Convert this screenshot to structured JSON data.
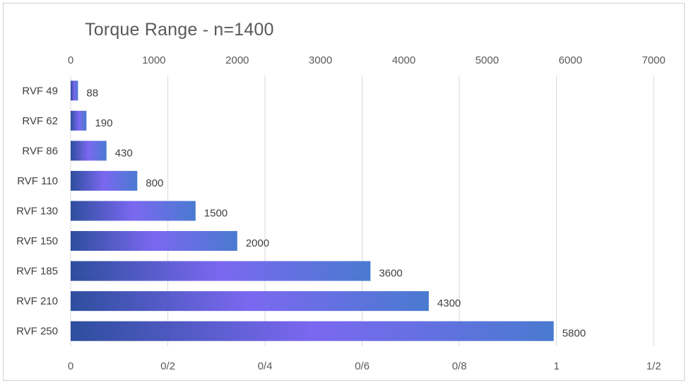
{
  "chart_data": {
    "type": "bar",
    "orientation": "horizontal",
    "title": "Torque Range - n=1400",
    "categories": [
      "RVF 49",
      "RVF 62",
      "RVF 86",
      "RVF 110",
      "RVF 130",
      "RVF 150",
      "RVF 185",
      "RVF 210",
      "RVF 250"
    ],
    "values": [
      88,
      190,
      430,
      800,
      1500,
      2000,
      3600,
      4300,
      5800
    ],
    "data_labels": [
      "88",
      "190",
      "430",
      "800",
      "1500",
      "2000",
      "3600",
      "4300",
      "5800"
    ],
    "top_axis": {
      "min": 0,
      "max": 7000,
      "ticks": [
        "0",
        "1000",
        "2000",
        "3000",
        "4000",
        "5000",
        "6000",
        "7000"
      ]
    },
    "bottom_axis": {
      "min": 0,
      "max": 1.2,
      "ticks": [
        "0",
        "0/2",
        "0/4",
        "0/6",
        "0/8",
        "1",
        "1/2"
      ]
    },
    "grid": true,
    "legend": "none",
    "colors": {
      "bar_dark": "#2e4e9e",
      "bar_light": "#7b68f0",
      "bar_edge": "#4a7ad0",
      "grid": "#d9d9d9",
      "text": "#595959"
    }
  }
}
